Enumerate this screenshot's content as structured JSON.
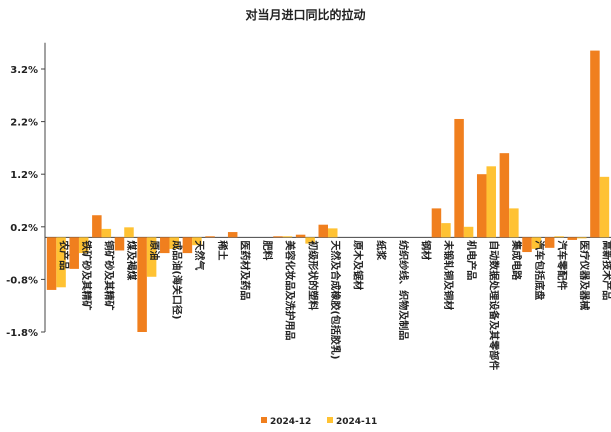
{
  "chart_data": {
    "type": "bar",
    "title": "对当月进口同比的拉动",
    "xlabel": "",
    "ylabel": "",
    "ylim": [
      -1.8,
      3.7
    ],
    "yticks": [
      3.2,
      2.2,
      1.2,
      0.2,
      -0.8,
      -1.8
    ],
    "ytick_labels": [
      "3.2%",
      "2.2%",
      "1.2%",
      "0.2%",
      "-0.8%",
      "-1.8%"
    ],
    "grid": false,
    "legend_position": "bottom",
    "categories": [
      "农产品",
      "铁矿砂及其精矿",
      "铜矿砂及其精矿",
      "煤及褐煤",
      "原油",
      "成品油(海关口径)",
      "天然气",
      "稀土",
      "医药材及药品",
      "肥料",
      "美容化妆品及洗护用品",
      "初级形状的塑料",
      "天然及合成橡胶(包括胶乳)",
      "原木及锯材",
      "纸浆",
      "纺织纱线、织物及制品",
      "钢材",
      "未锻轧铜及铜材",
      "机电产品",
      "自动数据处理设备及其零部件",
      "集成电路",
      "汽车包括底盘",
      "汽车零配件",
      "医疗仪器及器械",
      "高新技术产品"
    ],
    "series": [
      {
        "name": "2024-12",
        "color": "#F07F1E",
        "values": [
          -1.0,
          -0.6,
          0.42,
          -0.25,
          -1.8,
          -0.3,
          -0.3,
          0.02,
          0.1,
          0.0,
          0.02,
          0.05,
          0.24,
          0.0,
          0.0,
          0.0,
          0.0,
          0.55,
          2.25,
          1.2,
          1.6,
          -0.28,
          -0.2,
          -0.05,
          3.55
        ]
      },
      {
        "name": "2024-11",
        "color": "#FFC233",
        "values": [
          -0.95,
          -0.3,
          0.16,
          0.19,
          -0.75,
          -0.22,
          -0.15,
          0.0,
          0.0,
          0.0,
          0.02,
          -0.12,
          0.17,
          0.0,
          0.0,
          0.0,
          0.0,
          0.27,
          0.2,
          1.35,
          0.55,
          -0.22,
          0.02,
          -0.02,
          1.15
        ]
      }
    ]
  }
}
